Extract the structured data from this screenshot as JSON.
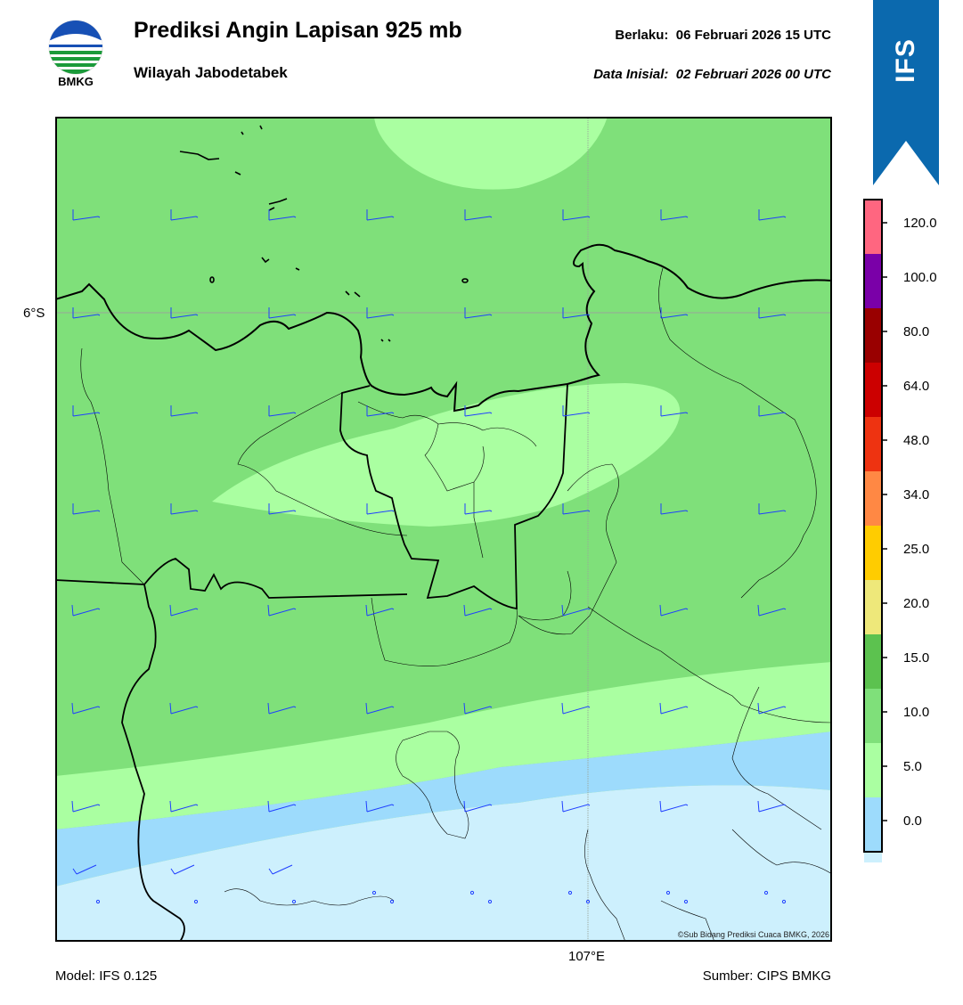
{
  "header": {
    "title": "Prediksi Angin Lapisan 925 mb",
    "region": "Wilayah Jabodetabek",
    "valid_label": "Berlaku:",
    "valid_time": "06 Februari 2026 15 UTC",
    "init_label": "Data Inisial:",
    "init_time": "02 Februari 2026 00 UTC",
    "logo_text": "BMKG"
  },
  "badge": {
    "text": "IFS",
    "color": "#0b69ae"
  },
  "map": {
    "lat_label": "6°S",
    "lon_label": "107°E",
    "credit": "©Sub Bidang Prediksi Cuaca BMKG, 2026",
    "colors": {
      "band_0_5": "#cdf0fd",
      "band_5_10": "#9ddbfc",
      "band_10_15": "#aaffa1",
      "band_15_20": "#7fe07a",
      "barb": "#1f3fff",
      "coast": "#000000"
    }
  },
  "colorbar": {
    "ticks": [
      "0.0",
      "5.0",
      "10.0",
      "15.0",
      "20.0",
      "25.0",
      "34.0",
      "48.0",
      "64.0",
      "80.0",
      "100.0",
      "120.0"
    ],
    "colors": [
      "#ffffff",
      "#cdf0fd",
      "#9ddbfc",
      "#aaffa1",
      "#7fe07a",
      "#5cc24f",
      "#eee87a",
      "#ffcc00",
      "#ff8844",
      "#ee3311",
      "#cc0000",
      "#990000",
      "#7a00a8",
      "#ff6680"
    ]
  },
  "footer": {
    "model": "Model: IFS 0.125",
    "source": "Sumber: CIPS BMKG"
  }
}
